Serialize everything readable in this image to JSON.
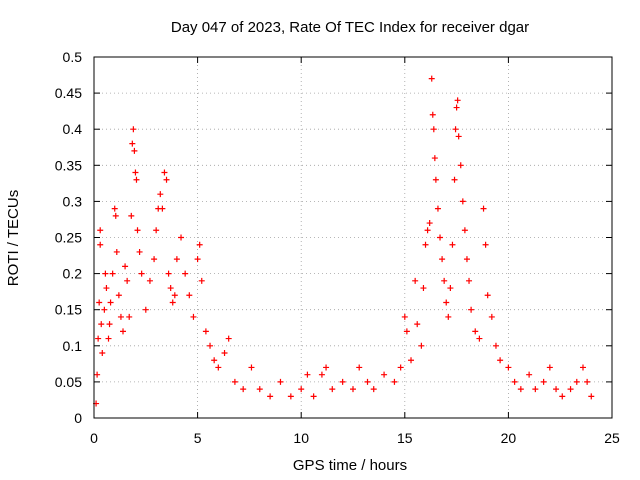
{
  "chart_data": {
    "type": "scatter",
    "title": "Day 047 of 2023, Rate Of TEC Index for receiver dgar",
    "xlabel": "GPS time / hours",
    "ylabel": "ROTI / TECUs",
    "xlim": [
      0,
      25
    ],
    "ylim": [
      0,
      0.5
    ],
    "x_ticks": [
      "0",
      "5",
      "10",
      "15",
      "20",
      "25"
    ],
    "y_ticks": [
      "0",
      "0.05",
      "0.1",
      "0.15",
      "0.2",
      "0.25",
      "0.3",
      "0.35",
      "0.4",
      "0.45",
      "0.5"
    ],
    "grid": true,
    "marker": "+",
    "color": "#ff0000",
    "series": [
      {
        "points": [
          [
            0.1,
            0.02
          ],
          [
            0.15,
            0.06
          ],
          [
            0.2,
            0.11
          ],
          [
            0.25,
            0.16
          ],
          [
            0.3,
            0.26
          ],
          [
            0.3,
            0.24
          ],
          [
            0.35,
            0.13
          ],
          [
            0.4,
            0.09
          ],
          [
            0.5,
            0.15
          ],
          [
            0.55,
            0.2
          ],
          [
            0.6,
            0.18
          ],
          [
            0.7,
            0.11
          ],
          [
            0.75,
            0.13
          ],
          [
            0.8,
            0.16
          ],
          [
            0.9,
            0.2
          ],
          [
            1.0,
            0.29
          ],
          [
            1.05,
            0.28
          ],
          [
            1.1,
            0.23
          ],
          [
            1.2,
            0.17
          ],
          [
            1.3,
            0.14
          ],
          [
            1.4,
            0.12
          ],
          [
            1.5,
            0.21
          ],
          [
            1.6,
            0.19
          ],
          [
            1.7,
            0.14
          ],
          [
            1.8,
            0.28
          ],
          [
            1.85,
            0.38
          ],
          [
            1.9,
            0.4
          ],
          [
            1.95,
            0.37
          ],
          [
            2.0,
            0.34
          ],
          [
            2.05,
            0.33
          ],
          [
            2.1,
            0.26
          ],
          [
            2.2,
            0.23
          ],
          [
            2.3,
            0.2
          ],
          [
            2.5,
            0.15
          ],
          [
            2.7,
            0.19
          ],
          [
            2.9,
            0.22
          ],
          [
            3.0,
            0.26
          ],
          [
            3.1,
            0.29
          ],
          [
            3.2,
            0.31
          ],
          [
            3.3,
            0.29
          ],
          [
            3.4,
            0.34
          ],
          [
            3.5,
            0.33
          ],
          [
            3.6,
            0.2
          ],
          [
            3.7,
            0.18
          ],
          [
            3.8,
            0.16
          ],
          [
            3.9,
            0.17
          ],
          [
            4.0,
            0.22
          ],
          [
            4.2,
            0.25
          ],
          [
            4.4,
            0.2
          ],
          [
            4.6,
            0.17
          ],
          [
            4.8,
            0.14
          ],
          [
            5.0,
            0.22
          ],
          [
            5.1,
            0.24
          ],
          [
            5.2,
            0.19
          ],
          [
            5.4,
            0.12
          ],
          [
            5.6,
            0.1
          ],
          [
            5.8,
            0.08
          ],
          [
            6.0,
            0.07
          ],
          [
            6.3,
            0.09
          ],
          [
            6.5,
            0.11
          ],
          [
            6.8,
            0.05
          ],
          [
            7.2,
            0.04
          ],
          [
            7.6,
            0.07
          ],
          [
            8.0,
            0.04
          ],
          [
            8.5,
            0.03
          ],
          [
            9.0,
            0.05
          ],
          [
            9.5,
            0.03
          ],
          [
            10.0,
            0.04
          ],
          [
            10.3,
            0.06
          ],
          [
            10.6,
            0.03
          ],
          [
            11.0,
            0.06
          ],
          [
            11.2,
            0.07
          ],
          [
            11.5,
            0.04
          ],
          [
            12.0,
            0.05
          ],
          [
            12.5,
            0.04
          ],
          [
            12.8,
            0.07
          ],
          [
            13.2,
            0.05
          ],
          [
            13.5,
            0.04
          ],
          [
            14.0,
            0.06
          ],
          [
            14.5,
            0.05
          ],
          [
            14.8,
            0.07
          ],
          [
            15.0,
            0.14
          ],
          [
            15.1,
            0.12
          ],
          [
            15.3,
            0.08
          ],
          [
            15.5,
            0.19
          ],
          [
            15.6,
            0.13
          ],
          [
            15.8,
            0.1
          ],
          [
            15.9,
            0.18
          ],
          [
            16.0,
            0.24
          ],
          [
            16.1,
            0.26
          ],
          [
            16.2,
            0.27
          ],
          [
            16.3,
            0.47
          ],
          [
            16.35,
            0.42
          ],
          [
            16.4,
            0.4
          ],
          [
            16.45,
            0.36
          ],
          [
            16.5,
            0.33
          ],
          [
            16.6,
            0.29
          ],
          [
            16.7,
            0.25
          ],
          [
            16.8,
            0.22
          ],
          [
            16.9,
            0.19
          ],
          [
            17.0,
            0.16
          ],
          [
            17.1,
            0.14
          ],
          [
            17.2,
            0.18
          ],
          [
            17.3,
            0.24
          ],
          [
            17.4,
            0.33
          ],
          [
            17.45,
            0.4
          ],
          [
            17.5,
            0.43
          ],
          [
            17.55,
            0.44
          ],
          [
            17.6,
            0.39
          ],
          [
            17.7,
            0.35
          ],
          [
            17.8,
            0.3
          ],
          [
            17.9,
            0.26
          ],
          [
            18.0,
            0.22
          ],
          [
            18.1,
            0.19
          ],
          [
            18.2,
            0.15
          ],
          [
            18.4,
            0.12
          ],
          [
            18.6,
            0.11
          ],
          [
            18.8,
            0.29
          ],
          [
            18.9,
            0.24
          ],
          [
            19.0,
            0.17
          ],
          [
            19.2,
            0.14
          ],
          [
            19.4,
            0.1
          ],
          [
            19.6,
            0.08
          ],
          [
            20.0,
            0.07
          ],
          [
            20.3,
            0.05
          ],
          [
            20.6,
            0.04
          ],
          [
            21.0,
            0.06
          ],
          [
            21.3,
            0.04
          ],
          [
            21.7,
            0.05
          ],
          [
            22.0,
            0.07
          ],
          [
            22.3,
            0.04
          ],
          [
            22.6,
            0.03
          ],
          [
            23.0,
            0.04
          ],
          [
            23.3,
            0.05
          ],
          [
            23.6,
            0.07
          ],
          [
            23.8,
            0.05
          ],
          [
            24.0,
            0.03
          ]
        ]
      }
    ]
  }
}
